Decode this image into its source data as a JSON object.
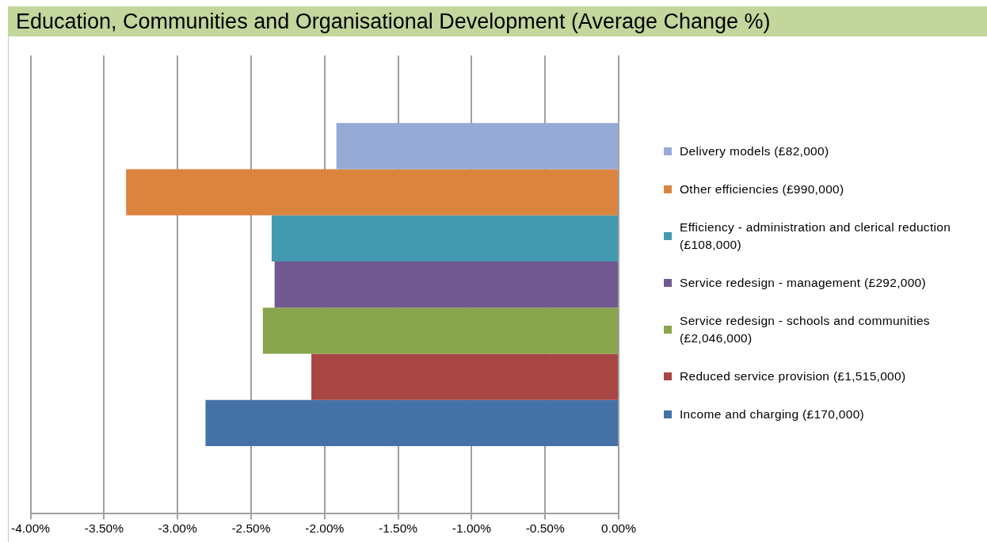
{
  "chart_data": {
    "type": "bar",
    "orientation": "horizontal",
    "title": "Education, Communities and Organisational Development (Average Change %)",
    "categories": [
      null
    ],
    "series": [
      {
        "name": "Delivery models (£82,000)",
        "color": "#95abd5",
        "values": [
          -1.92
        ]
      },
      {
        "name": "Other efficiencies (£990,000)",
        "color": "#db8440",
        "values": [
          -3.35
        ]
      },
      {
        "name": "Efficiency - administration and clerical reduction (£108,000)",
        "color": "#4399af",
        "values": [
          -2.36
        ]
      },
      {
        "name": "Service redesign  - management (£292,000)",
        "color": "#71588e",
        "values": [
          -2.34
        ]
      },
      {
        "name": "Service redesign - schools and communities (£2,046,000)",
        "color": "#89a54e",
        "values": [
          -2.42
        ]
      },
      {
        "name": "Reduced service provision (£1,515,000)",
        "color": "#a84644",
        "values": [
          -2.09
        ]
      },
      {
        "name": "Income and charging (£170,000)",
        "color": "#4572a6",
        "values": [
          -2.81
        ]
      }
    ],
    "xlim": [
      -4,
      0
    ],
    "xticks": [
      {
        "value": -4,
        "label": "-4.00%"
      },
      {
        "value": -3.5,
        "label": "-3.50%"
      },
      {
        "value": -3,
        "label": "-3.00%"
      },
      {
        "value": -2.5,
        "label": "-2.50%"
      },
      {
        "value": -2,
        "label": "-2.00%"
      },
      {
        "value": -1.5,
        "label": "-1.50%"
      },
      {
        "value": -1,
        "label": "-1.00%"
      },
      {
        "value": -0.5,
        "label": "-0.50%"
      },
      {
        "value": 0,
        "label": "0.00%"
      }
    ],
    "grid": "x",
    "legend": "right"
  }
}
